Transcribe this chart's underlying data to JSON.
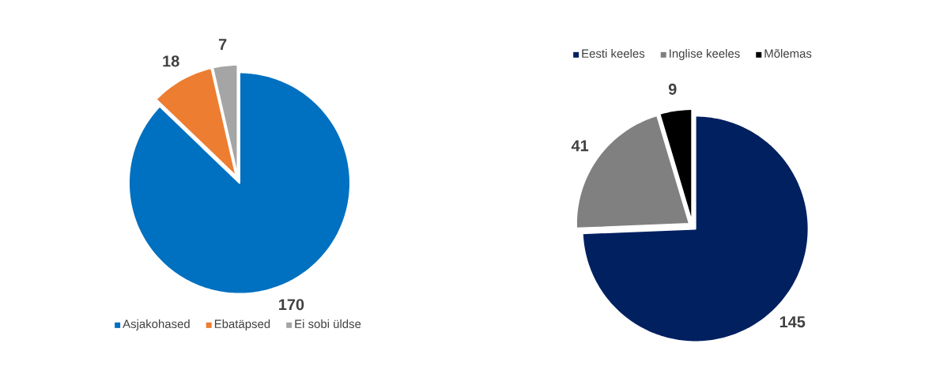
{
  "chart_data": [
    {
      "type": "pie",
      "categories": [
        "Asjakohased",
        "Ebatäpsed",
        "Ei sobi üldse"
      ],
      "values": [
        170,
        18,
        7
      ],
      "colors": [
        "#0070c0",
        "#ed7d31",
        "#a5a5a5"
      ],
      "data_labels": true,
      "legend": "bottom"
    },
    {
      "type": "pie",
      "categories": [
        "Eesti keeles",
        "Inglise keeles",
        "Mõlemas"
      ],
      "values": [
        145,
        41,
        9
      ],
      "colors": [
        "#002060",
        "#808080",
        "#000000"
      ],
      "data_labels": true,
      "legend": "top"
    }
  ]
}
